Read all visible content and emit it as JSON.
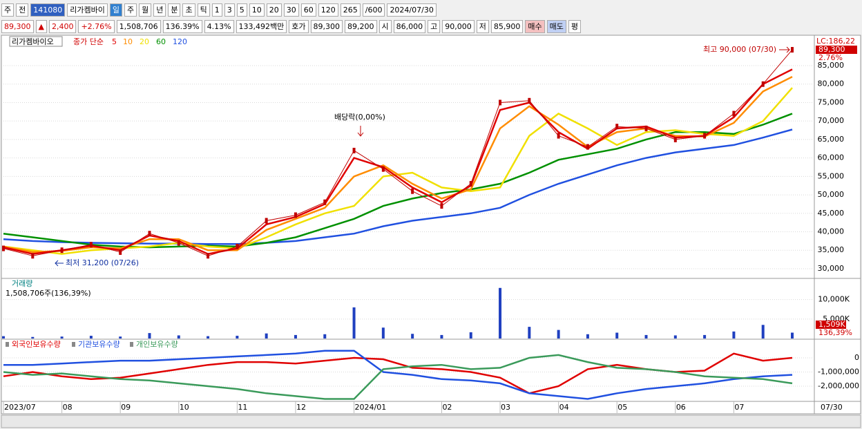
{
  "toolbar": {
    "items": [
      "주",
      "전",
      "141080",
      "리가켐바이",
      "일",
      "주",
      "월",
      "년",
      "분",
      "초",
      "틱",
      "1",
      "3",
      "5",
      "10",
      "20",
      "30",
      "60",
      "120",
      "265",
      "/600",
      "2024/07/30"
    ]
  },
  "quote": {
    "items": [
      "89,300",
      "▲",
      "2,400",
      "+2.76%",
      "1,508,706",
      "136.39%",
      "4.13%",
      "133,492백만",
      "호가",
      "89,300",
      "89,200",
      "시",
      "86,000",
      "고",
      "90,000",
      "저",
      "85,900",
      "매수",
      "매도",
      "평"
    ]
  },
  "chart_data": {
    "type": "stock",
    "categories": [
      "2023/07",
      null,
      "08",
      null,
      "09",
      null,
      "10",
      null,
      "11",
      null,
      "12",
      null,
      "2024/01",
      null,
      null,
      "02",
      null,
      "03",
      null,
      "04",
      null,
      "05",
      null,
      "06",
      null,
      "07",
      null,
      null
    ],
    "x_end_label": "07/30",
    "price": {
      "title": "리가켐바이오",
      "subtitle": "종가 단순",
      "ylim": [
        27560,
        93050
      ],
      "yticks": [
        {
          "value": 30000,
          "label": "30,000"
        },
        {
          "value": 35000,
          "label": "35,000"
        },
        {
          "value": 40000,
          "label": "40,000"
        },
        {
          "value": 45000,
          "label": "45,000"
        },
        {
          "value": 50000,
          "label": "50,000"
        },
        {
          "value": 55000,
          "label": "55,000"
        },
        {
          "value": 60000,
          "label": "60,000"
        },
        {
          "value": 65000,
          "label": "65,000"
        },
        {
          "value": 70000,
          "label": "70,000"
        },
        {
          "value": 75000,
          "label": "75,000"
        },
        {
          "value": 80000,
          "label": "80,000"
        },
        {
          "value": 85000,
          "label": "85,000"
        }
      ],
      "color": "#c00000",
      "values": [
        35500,
        33500,
        35000,
        36500,
        34500,
        39500,
        37000,
        33500,
        36000,
        43000,
        44500,
        48000,
        62000,
        57000,
        51000,
        47000,
        53000,
        75000,
        75500,
        66000,
        63000,
        68500,
        68000,
        65000,
        66000,
        72000,
        80000,
        89300
      ],
      "series": [
        {
          "name": "5",
          "color": "#e00000",
          "values": [
            35800,
            34000,
            35000,
            36200,
            35000,
            39000,
            37500,
            34000,
            35500,
            42000,
            44000,
            47500,
            60000,
            57500,
            52000,
            48000,
            52500,
            73000,
            75000,
            67000,
            62500,
            68000,
            68500,
            65500,
            66000,
            71000,
            80000,
            84000
          ]
        },
        {
          "name": "10",
          "color": "#ff8c00",
          "values": [
            36000,
            34500,
            34800,
            35800,
            35500,
            38000,
            38000,
            35000,
            35000,
            40500,
            43500,
            46500,
            55000,
            58000,
            53000,
            49000,
            51500,
            68000,
            74000,
            69000,
            63000,
            67000,
            68000,
            66000,
            65800,
            69500,
            78000,
            82000
          ]
        },
        {
          "name": "20",
          "color": "#f0e000",
          "values": [
            36000,
            35000,
            34000,
            35000,
            35500,
            36000,
            37000,
            36000,
            35500,
            38500,
            42000,
            45000,
            47000,
            55000,
            56000,
            52000,
            51000,
            52000,
            66000,
            72000,
            68000,
            63500,
            67000,
            67500,
            66500,
            66000,
            70000,
            79000
          ]
        },
        {
          "name": "60",
          "color": "#009000",
          "values": [
            39500,
            38500,
            37500,
            36500,
            36000,
            35800,
            36000,
            36200,
            36000,
            37000,
            38500,
            41000,
            43500,
            47000,
            49000,
            50500,
            51500,
            53000,
            56000,
            59500,
            61000,
            62500,
            65000,
            67000,
            67000,
            66500,
            69000,
            72000
          ]
        },
        {
          "name": "120",
          "color": "#2050e0",
          "values": [
            38000,
            37500,
            37200,
            37000,
            36900,
            36800,
            36800,
            36700,
            36700,
            37000,
            37500,
            38500,
            39500,
            41500,
            43000,
            44000,
            45000,
            46500,
            50000,
            53000,
            55500,
            58000,
            60000,
            61500,
            62500,
            63500,
            65500,
            67700
          ]
        }
      ],
      "annotations": [
        "최고 90,000 (07/30)",
        "최저 31,200 (07/26)",
        "배당락(0,00%)"
      ],
      "side_labels": [
        "LC:186,22",
        "89,300",
        "2.76%"
      ]
    },
    "volume": {
      "title": "거래량",
      "subtitle": "1,508,706주(136,39%)",
      "color": "#2040c0",
      "ylim": [
        0,
        15270
      ],
      "yticks": [
        {
          "value": 5000,
          "label": "5,000K"
        },
        {
          "value": 10000,
          "label": "10,000K"
        }
      ],
      "values": [
        600,
        400,
        500,
        700,
        500,
        1400,
        800,
        600,
        700,
        1300,
        900,
        1100,
        8000,
        2800,
        1200,
        900,
        1600,
        13000,
        3000,
        2200,
        1100,
        1500,
        900,
        800,
        900,
        1800,
        3500,
        1509
      ],
      "side_labels": [
        "1,509K",
        "136,39%"
      ]
    },
    "holdings": {
      "color_note_free": null,
      "ylim": [
        -3024000,
        1268000
      ],
      "yticks": [
        0,
        {
          "value": -1000000,
          "label": "-1,000,000"
        },
        {
          "value": -2000000,
          "label": "-2,000,000"
        }
      ],
      "series": [
        {
          "name": "외국인보유수량",
          "color": "#e00000",
          "values": [
            -1300000,
            -1000000,
            -1300000,
            -1500000,
            -1400000,
            -1100000,
            -800000,
            -500000,
            -300000,
            -300000,
            -400000,
            -200000,
            0,
            -100000,
            -700000,
            -800000,
            -1000000,
            -1400000,
            -2500000,
            -2000000,
            -800000,
            -500000,
            -800000,
            -1000000,
            -900000,
            300000,
            -200000,
            0
          ]
        },
        {
          "name": "기관보유수량",
          "color": "#2050e0",
          "values": [
            -500000,
            -500000,
            -400000,
            -300000,
            -200000,
            -200000,
            -100000,
            0,
            100000,
            200000,
            300000,
            500000,
            500000,
            -1000000,
            -1200000,
            -1500000,
            -1600000,
            -1800000,
            -2500000,
            -2700000,
            -2900000,
            -2500000,
            -2200000,
            -2000000,
            -1800000,
            -1500000,
            -1300000,
            -1200000
          ]
        },
        {
          "name": "개인보유수량",
          "color": "#3a9a5a",
          "values": [
            -1000000,
            -1200000,
            -1100000,
            -1300000,
            -1500000,
            -1600000,
            -1800000,
            -2000000,
            -2200000,
            -2500000,
            -2700000,
            -2900000,
            -2900000,
            -800000,
            -600000,
            -500000,
            -800000,
            -700000,
            0,
            200000,
            -300000,
            -700000,
            -800000,
            -1000000,
            -1300000,
            -1400000,
            -1500000,
            -1800000
          ]
        }
      ]
    }
  }
}
